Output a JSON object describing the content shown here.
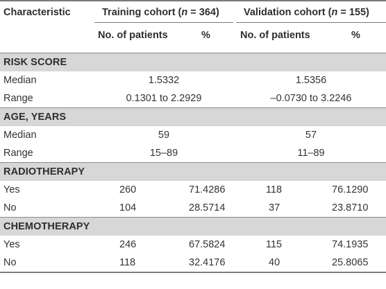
{
  "table": {
    "header": {
      "characteristic": "Characteristic",
      "training_prefix": "Training cohort (",
      "training_n": "n",
      "training_suffix": " = 364)",
      "validation_prefix": "Validation cohort (",
      "validation_n": "n",
      "validation_suffix": " = 155)",
      "no_patients_1": "No. of patients",
      "pct_1": "%",
      "no_patients_2": "No. of patients",
      "pct_2": "%"
    },
    "risk_score": {
      "title": "RISK SCORE",
      "median_label": "Median",
      "median_training": "1.5332",
      "median_validation": "1.5356",
      "range_label": "Range",
      "range_training": "0.1301 to 2.2929",
      "range_validation": "–0.0730 to 3.2246"
    },
    "age": {
      "title": "AGE, YEARS",
      "median_label": "Median",
      "median_training": "59",
      "median_validation": "57",
      "range_label": "Range",
      "range_training": "15–89",
      "range_validation": "11–89"
    },
    "radiotherapy": {
      "title": "RADIOTHERAPY",
      "rows": [
        {
          "label": "Yes",
          "t_n": "260",
          "t_pct": "71.4286",
          "v_n": "118",
          "v_pct": "76.1290"
        },
        {
          "label": "No",
          "t_n": "104",
          "t_pct": "28.5714",
          "v_n": "37",
          "v_pct": "23.8710"
        }
      ]
    },
    "chemotherapy": {
      "title": "CHEMOTHERAPY",
      "rows": [
        {
          "label": "Yes",
          "t_n": "246",
          "t_pct": "67.5824",
          "v_n": "115",
          "v_pct": "74.1935"
        },
        {
          "label": "No",
          "t_n": "118",
          "t_pct": "32.4176",
          "v_n": "40",
          "v_pct": "25.8065"
        }
      ]
    }
  }
}
